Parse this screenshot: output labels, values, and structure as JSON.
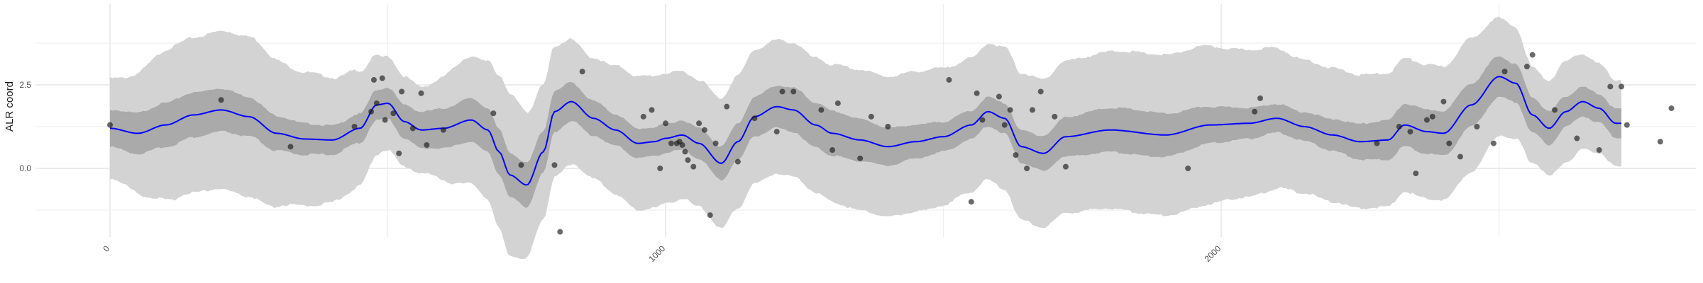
{
  "chart_data": {
    "type": "line",
    "title": "",
    "xlabel": "",
    "ylabel": "ALR coord",
    "xlim": [
      -10,
      2840
    ],
    "ylim": [
      -2.1,
      4.95
    ],
    "x_ticks": [
      0,
      1000,
      2000
    ],
    "x_tick_labels": [
      "0",
      "1000",
      "2000"
    ],
    "x_minor_ticks": [
      500,
      1500,
      2500
    ],
    "y_ticks": [
      0.0,
      2.5
    ],
    "y_tick_labels": [
      "0.0",
      "2.5"
    ],
    "y_minor_ticks": [
      -1.25,
      1.25,
      3.75
    ],
    "grid": true,
    "legend": "none",
    "colors": {
      "line": "#0000ff",
      "outer_band": "#d3d3d3",
      "inner_band": "#aaaaaa",
      "points": "#1a1a1a",
      "grid": "#ebebeb"
    },
    "series": [
      {
        "kind": "line",
        "x": [
          0,
          50,
          100,
          150,
          200,
          250,
          300,
          350,
          400,
          450,
          480,
          500,
          530,
          560,
          600,
          650,
          680,
          700,
          720,
          750,
          780,
          800,
          830,
          870,
          910,
          950,
          980,
          1000,
          1030,
          1060,
          1100,
          1130,
          1160,
          1200,
          1230,
          1270,
          1300,
          1350,
          1400,
          1450,
          1500,
          1550,
          1580,
          1610,
          1640,
          1680,
          1720,
          1800,
          1900,
          1980,
          2050,
          2100,
          2150,
          2200,
          2250,
          2300,
          2330,
          2370,
          2400,
          2450,
          2500,
          2530,
          2560,
          2590,
          2620,
          2650,
          2680,
          2710
        ],
        "y": [
          1.2,
          1.05,
          1.3,
          1.6,
          1.75,
          1.55,
          1.05,
          0.88,
          0.85,
          1.2,
          1.9,
          1.95,
          1.4,
          1.15,
          1.2,
          1.45,
          1.15,
          0.5,
          -0.2,
          -0.5,
          0.5,
          1.7,
          2.0,
          1.5,
          1.15,
          0.75,
          0.8,
          0.9,
          1.0,
          0.75,
          0.15,
          0.8,
          1.55,
          1.85,
          1.75,
          1.3,
          1.05,
          0.85,
          0.65,
          0.8,
          0.95,
          1.3,
          1.7,
          1.5,
          0.65,
          0.45,
          0.95,
          1.15,
          1.0,
          1.3,
          1.35,
          1.5,
          1.25,
          1.0,
          0.8,
          0.85,
          1.3,
          1.1,
          1.05,
          1.9,
          2.75,
          2.55,
          1.6,
          1.2,
          1.7,
          2.0,
          1.8,
          1.35
        ]
      },
      {
        "kind": "points",
        "x": [
          0,
          200,
          325,
          440,
          470,
          475,
          480,
          490,
          495,
          510,
          520,
          525,
          545,
          560,
          570,
          600,
          690,
          740,
          800,
          810,
          850,
          960,
          975,
          990,
          1000,
          1010,
          1020,
          1025,
          1030,
          1035,
          1040,
          1050,
          1060,
          1070,
          1080,
          1090,
          1110,
          1130,
          1160,
          1200,
          1210,
          1230,
          1280,
          1300,
          1310,
          1350,
          1370,
          1400,
          1510,
          1550,
          1560,
          1570,
          1600,
          1610,
          1620,
          1630,
          1650,
          1660,
          1675,
          1700,
          1720,
          1940,
          2060,
          2070,
          2280,
          2320,
          2340,
          2350,
          2370,
          2380,
          2400,
          2410,
          2430,
          2460,
          2490,
          2510,
          2550,
          2560,
          2600,
          2640,
          2680,
          2700,
          2720,
          2730,
          2790,
          2810
        ],
        "y": [
          1.3,
          2.05,
          0.65,
          1.25,
          1.7,
          2.65,
          1.95,
          2.7,
          1.45,
          1.65,
          0.45,
          2.3,
          1.2,
          2.25,
          0.7,
          1.15,
          1.65,
          0.1,
          0.1,
          -1.9,
          2.9,
          1.55,
          1.75,
          0.0,
          1.35,
          0.75,
          0.75,
          0.8,
          0.7,
          0.5,
          0.25,
          0.05,
          1.35,
          1.15,
          -1.4,
          0.75,
          1.85,
          0.2,
          1.5,
          1.1,
          2.3,
          2.3,
          1.75,
          0.55,
          1.95,
          0.3,
          1.55,
          1.25,
          2.65,
          -1.0,
          2.25,
          1.45,
          2.15,
          1.3,
          1.75,
          0.4,
          0.0,
          1.75,
          2.3,
          1.55,
          0.05,
          0.0,
          1.7,
          2.1,
          0.75,
          1.25,
          1.1,
          -0.15,
          1.45,
          1.55,
          2.0,
          0.75,
          0.35,
          1.25,
          0.75,
          2.9,
          3.05,
          3.4,
          1.75,
          0.9,
          0.55,
          2.45,
          2.45,
          1.3,
          0.8,
          1.8
        ]
      }
    ],
    "bands": {
      "inner_halfwidth": 0.5,
      "outer_halfwidth": 1.2,
      "outer_amplitude_x": [
        0,
        120,
        250,
        350,
        430,
        500,
        560,
        650,
        720,
        780,
        860,
        950,
        1050,
        1150,
        1250,
        1350,
        1450,
        1550,
        1650,
        1750,
        1850,
        1950,
        2050,
        2150,
        2250,
        2350,
        2450,
        2520,
        2570,
        2620,
        2700
      ],
      "outer_amplitude_w": [
        1.5,
        2.3,
        2.4,
        2.0,
        1.8,
        1.4,
        1.3,
        1.9,
        2.4,
        2.0,
        1.8,
        2.0,
        1.9,
        2.0,
        2.0,
        2.1,
        2.1,
        2.0,
        2.2,
        2.3,
        2.4,
        2.4,
        2.2,
        2.0,
        2.0,
        2.0,
        2.0,
        1.7,
        1.4,
        1.5,
        1.3
      ]
    }
  }
}
